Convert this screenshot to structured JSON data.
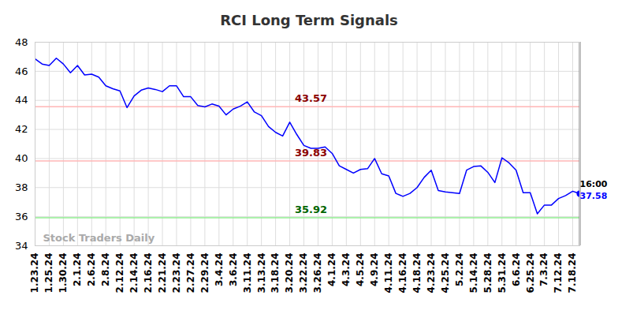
{
  "chart_data": {
    "type": "line",
    "title": "RCI Long Term Signals",
    "categories": [
      "1.23.24",
      null,
      "1.25.24",
      null,
      "1.30.24",
      null,
      "2.1.24",
      null,
      "2.6.24",
      null,
      "2.8.24",
      null,
      "2.12.24",
      null,
      "2.14.24",
      null,
      "2.16.24",
      null,
      "2.21.24",
      null,
      "2.23.24",
      null,
      "2.27.24",
      null,
      "2.29.24",
      null,
      "3.4.24",
      null,
      "3.6.24",
      null,
      "3.11.24",
      null,
      "3.13.24",
      null,
      "3.18.24",
      null,
      "3.20.24",
      null,
      "3.22.24",
      null,
      "3.26.24",
      null,
      "4.1.24",
      null,
      "4.3.24",
      null,
      "4.5.24",
      null,
      "4.9.24",
      null,
      "4.11.24",
      null,
      "4.16.24",
      null,
      "4.18.24",
      null,
      "4.23.24",
      null,
      "4.25.24",
      null,
      "5.2.24",
      null,
      "5.14.24",
      null,
      "5.28.24",
      null,
      "5.31.24",
      null,
      "6.6.24",
      null,
      "6.25.24",
      null,
      "7.3.24",
      null,
      "7.12.24",
      null,
      "7.18.24",
      null
    ],
    "values": [
      46.85,
      46.5,
      46.4,
      46.9,
      46.5,
      45.9,
      46.4,
      45.75,
      45.8,
      45.6,
      45.0,
      44.8,
      44.65,
      43.5,
      44.3,
      44.7,
      44.85,
      44.75,
      44.6,
      45.0,
      45.0,
      44.25,
      44.25,
      43.65,
      43.55,
      43.75,
      43.6,
      43.0,
      43.4,
      43.6,
      43.9,
      43.2,
      42.95,
      42.2,
      41.8,
      41.55,
      42.5,
      41.65,
      40.9,
      40.7,
      40.7,
      40.8,
      40.35,
      39.5,
      39.25,
      39.0,
      39.25,
      39.3,
      40.0,
      38.95,
      38.8,
      37.6,
      37.4,
      37.6,
      38.0,
      38.7,
      39.2,
      37.8,
      37.7,
      37.65,
      37.6,
      39.2,
      39.45,
      39.5,
      39.05,
      38.35,
      40.05,
      39.7,
      39.2,
      37.65,
      37.65,
      36.2,
      36.8,
      36.8,
      37.25,
      37.45,
      37.75,
      37.58
    ],
    "color": "#0000ff",
    "ylim": [
      34,
      48
    ],
    "yticks": [
      34,
      36,
      38,
      40,
      42,
      44,
      46,
      48
    ],
    "grid": true,
    "reference_lines": [
      {
        "value": 43.57,
        "color": "#ffb6b6",
        "text_color": "#8b0000"
      },
      {
        "value": 39.83,
        "color": "#ffb6b6",
        "text_color": "#8b0000"
      },
      {
        "value": 35.92,
        "color": "#90ee90",
        "text_color": "#006400"
      }
    ],
    "last_time": "16:00",
    "watermark": "Stock Traders Daily"
  }
}
